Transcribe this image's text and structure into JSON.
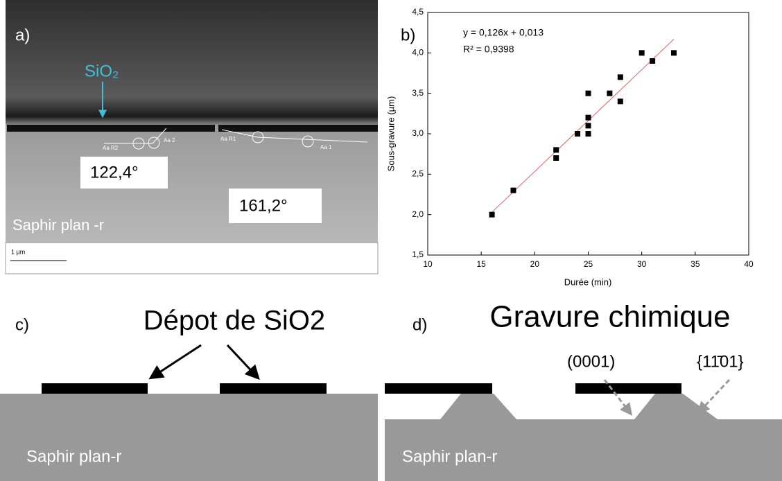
{
  "panel_a": {
    "label": "a)",
    "layer": "SiO₂",
    "angle_left": "122,4°",
    "angle_right": "161,2°",
    "substrate": "Saphir plan -r",
    "scale_bar": "1 µm",
    "markers": [
      "Aa R2",
      "Aa 2",
      "Aa R1",
      "Aa 1"
    ]
  },
  "chart_data": {
    "type": "scatter",
    "panel_label": "b)",
    "xlabel": "Durée (min)",
    "ylabel": "Sous-gravure (µm)",
    "annotations": [
      "y = 0,126x + 0,013",
      "R² = 0,9398"
    ],
    "x": [
      16,
      18,
      22,
      22,
      24,
      25,
      25,
      25,
      25,
      27,
      28,
      28,
      30,
      31,
      33
    ],
    "series": [
      {
        "color": "#000000",
        "values": [
          2.0,
          2.3,
          2.8,
          2.7,
          3.0,
          3.5,
          3.2,
          3.1,
          3.0,
          3.5,
          3.7,
          3.4,
          4.0,
          3.9,
          4.0
        ]
      }
    ],
    "fit_line": {
      "color": "#e06666",
      "x": [
        16,
        33
      ],
      "values": [
        2.03,
        4.17
      ]
    },
    "xlim": [
      10,
      40
    ],
    "xticks": [
      10,
      15,
      20,
      25,
      30,
      35,
      40
    ],
    "ylim": [
      1.5,
      4.5
    ],
    "yticks": [
      {
        "value": 1.5,
        "label": "1,5"
      },
      {
        "value": 2,
        "label": "2,0"
      },
      {
        "value": 2.5,
        "label": "2,5"
      },
      {
        "value": 3,
        "label": "3,0"
      },
      {
        "value": 3.5,
        "label": "3,5"
      },
      {
        "value": 4,
        "label": "4,0"
      },
      {
        "value": 4.5,
        "label": "4,5"
      }
    ]
  },
  "panel_c": {
    "label": "c)",
    "title": "Dépot de SiO2",
    "substrate": "Saphir plan-r"
  },
  "panel_d": {
    "label": "d)",
    "title": "Gravure chimique",
    "plane_c": "(0001)",
    "plane_r": "{11̄01}",
    "substrate": "Saphir plan-r"
  }
}
